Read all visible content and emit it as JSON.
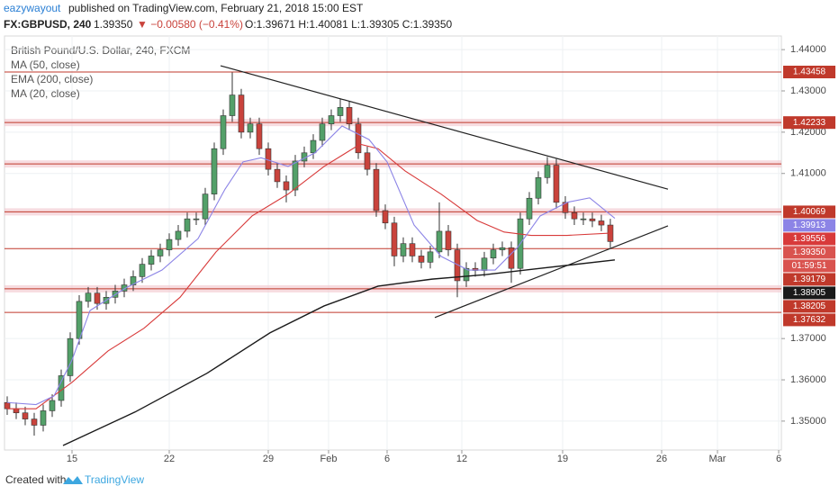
{
  "header": {
    "author": "eazywayout",
    "published": " published on TradingView.com, February 21, 2018 15:00 EST",
    "symbol": "FX:GBPUSD, 240",
    "last": "1.39350",
    "change": "▼ −0.00580 (−0.41%)",
    "ohlc": "O:1.39671 H:1.40081 L:1.39305 C:1.39350"
  },
  "footer": {
    "created": "Created with",
    "brand": "TradingView"
  },
  "chart_data": {
    "type": "candlestick",
    "title": "British Pound/U.S. Dollar, 240, FXCM",
    "up_color": "#53a069",
    "down_color": "#c9433c",
    "grid": true,
    "x": [
      0,
      1,
      2,
      3,
      4,
      5,
      6,
      7,
      8,
      9,
      10,
      11,
      12,
      13,
      14,
      15,
      16,
      17,
      18,
      19,
      20,
      21,
      22,
      23,
      24,
      25,
      26,
      27,
      28,
      29,
      30,
      31,
      32,
      33,
      34,
      35,
      36,
      37,
      38,
      39,
      40,
      41,
      42,
      43,
      44,
      45,
      46,
      47,
      48,
      49,
      50,
      51,
      52,
      53,
      54,
      55,
      56,
      57,
      58,
      59,
      60,
      61,
      62,
      63,
      64,
      65,
      66,
      67
    ],
    "open": [
      1.3545,
      1.353,
      1.352,
      1.3505,
      1.349,
      1.3525,
      1.355,
      1.361,
      1.37,
      1.379,
      1.381,
      1.3785,
      1.38,
      1.3815,
      1.383,
      1.385,
      1.388,
      1.39,
      1.3915,
      1.394,
      1.396,
      1.399,
      1.399,
      1.405,
      1.416,
      1.424,
      1.429,
      1.42,
      1.422,
      1.416,
      1.411,
      1.408,
      1.406,
      1.413,
      1.415,
      1.418,
      1.422,
      1.424,
      1.426,
      1.422,
      1.415,
      1.411,
      1.401,
      1.398,
      1.39,
      1.393,
      1.39,
      1.3885,
      1.391,
      1.396,
      1.3915,
      1.384,
      1.387,
      1.3865,
      1.3895,
      1.3915,
      1.392,
      1.387,
      1.399,
      1.404,
      1.409,
      1.412,
      1.403,
      1.4005,
      1.399,
      1.399,
      1.3985,
      1.3975
    ],
    "high": [
      1.356,
      1.3545,
      1.3535,
      1.352,
      1.354,
      1.3565,
      1.3625,
      1.3715,
      1.3805,
      1.3825,
      1.3825,
      1.3815,
      1.383,
      1.3845,
      1.3865,
      1.3895,
      1.3915,
      1.393,
      1.3955,
      1.3975,
      1.4005,
      1.4005,
      1.4065,
      1.4175,
      1.4255,
      1.4345,
      1.4305,
      1.4235,
      1.4235,
      1.4175,
      1.4125,
      1.4095,
      1.4145,
      1.4165,
      1.4195,
      1.4235,
      1.4255,
      1.428,
      1.4275,
      1.4235,
      1.4165,
      1.4125,
      1.4025,
      1.3995,
      1.3945,
      1.3945,
      1.3915,
      1.3925,
      1.403,
      1.3975,
      1.393,
      1.3885,
      1.3885,
      1.391,
      1.393,
      1.3935,
      1.3935,
      1.4005,
      1.4055,
      1.4105,
      1.414,
      1.4135,
      1.4045,
      1.402,
      1.4005,
      1.4005,
      1.4,
      1.399
    ],
    "low": [
      1.3515,
      1.3505,
      1.349,
      1.3465,
      1.3475,
      1.351,
      1.3535,
      1.3595,
      1.3685,
      1.3775,
      1.377,
      1.377,
      1.3785,
      1.38,
      1.3815,
      1.3835,
      1.3865,
      1.3885,
      1.39,
      1.3925,
      1.3945,
      1.3975,
      1.3975,
      1.4035,
      1.4145,
      1.4225,
      1.4185,
      1.4185,
      1.4145,
      1.4095,
      1.4065,
      1.403,
      1.4045,
      1.4115,
      1.4135,
      1.4165,
      1.4205,
      1.4225,
      1.4205,
      1.4135,
      1.4095,
      1.3995,
      1.3965,
      1.3875,
      1.3885,
      1.3885,
      1.387,
      1.387,
      1.3895,
      1.39,
      1.38,
      1.3825,
      1.385,
      1.385,
      1.388,
      1.39,
      1.3835,
      1.3855,
      1.3975,
      1.4025,
      1.4075,
      1.4015,
      1.399,
      1.3975,
      1.3975,
      1.397,
      1.396,
      1.392
    ],
    "close": [
      1.353,
      1.352,
      1.3505,
      1.349,
      1.3525,
      1.355,
      1.361,
      1.37,
      1.379,
      1.381,
      1.3785,
      1.38,
      1.3815,
      1.383,
      1.385,
      1.388,
      1.39,
      1.3915,
      1.394,
      1.396,
      1.399,
      1.399,
      1.405,
      1.416,
      1.424,
      1.429,
      1.42,
      1.422,
      1.416,
      1.411,
      1.408,
      1.406,
      1.413,
      1.415,
      1.418,
      1.422,
      1.424,
      1.426,
      1.422,
      1.415,
      1.411,
      1.401,
      1.398,
      1.39,
      1.393,
      1.39,
      1.3885,
      1.391,
      1.396,
      1.3915,
      1.384,
      1.387,
      1.3865,
      1.3895,
      1.3915,
      1.392,
      1.387,
      1.399,
      1.404,
      1.409,
      1.412,
      1.403,
      1.4005,
      1.399,
      1.399,
      1.3985,
      1.3975,
      1.3935
    ],
    "series": [
      {
        "name": "MA (50, close)",
        "color": "#d83a3a",
        "last": 1.39556,
        "x": [
          0,
          3.2,
          7.2,
          11.2,
          15.2,
          19.2,
          23.2,
          27.2,
          31.2,
          35.2,
          39.2,
          41.2,
          44.2,
          48.2,
          52.2,
          55.2,
          58.2,
          62.2,
          67.2
        ],
        "values": [
          1.353,
          1.353,
          1.3594,
          1.367,
          1.3725,
          1.38,
          1.391,
          1.3997,
          1.405,
          1.4117,
          1.4171,
          1.416,
          1.4106,
          1.405,
          1.3986,
          1.3958,
          1.395,
          1.395,
          1.39556
        ]
      },
      {
        "name": "EMA (200, close)",
        "color": "#1a1a1a",
        "last": 1.38905,
        "x": [
          6.2,
          14.2,
          22.2,
          29.2,
          35.2,
          41.2,
          47.2,
          53.2,
          59.2,
          67.5
        ],
        "values": [
          1.3441,
          1.3522,
          1.3616,
          1.3714,
          1.3779,
          1.3827,
          1.3844,
          1.3855,
          1.387,
          1.38905
        ]
      },
      {
        "name": "MA (20, close)",
        "color": "#8c84e6",
        "last": 1.39913,
        "x": [
          0,
          3.2,
          5.2,
          7.2,
          9.2,
          13.2,
          17.2,
          21.2,
          24.2,
          26.2,
          28.2,
          31.2,
          34.2,
          37.2,
          40.2,
          42.2,
          45.2,
          48.2,
          51.2,
          54.2,
          56.7,
          59.2,
          62.2,
          64.7,
          67.5
        ],
        "values": [
          1.3545,
          1.354,
          1.3561,
          1.3648,
          1.3768,
          1.3823,
          1.3866,
          1.3942,
          1.4062,
          1.4128,
          1.4138,
          1.4117,
          1.415,
          1.4215,
          1.4182,
          1.4128,
          1.3975,
          1.3899,
          1.3866,
          1.3866,
          1.3921,
          1.3997,
          1.403,
          1.4041,
          1.39913
        ]
      }
    ],
    "levels": [
      {
        "value": 1.43458,
        "band": false
      },
      {
        "value": 1.42233,
        "band": true
      },
      {
        "value": 1.40069,
        "band": true
      },
      {
        "value": 1.39179,
        "band": false
      },
      {
        "value": 1.38205,
        "band": true
      },
      {
        "value": 1.37632,
        "band": false
      }
    ],
    "unlabeled_levels": [
      {
        "value": 1.4123,
        "band": true
      }
    ],
    "trendlines": [
      {
        "x": [
          23.7,
          73.4
        ],
        "y": [
          1.4361,
          1.4062
        ]
      },
      {
        "x": [
          47.5,
          73.4
        ],
        "y": [
          1.3751,
          1.3973
        ]
      }
    ],
    "last_price": {
      "value": 1.3935,
      "label": "1.39350"
    },
    "countdown": "01:59:51",
    "xlim": [
      -0.3,
      86
    ],
    "ylim": [
      1.343,
      1.4433
    ],
    "xticks": [
      {
        "value": 7.2,
        "label": "15"
      },
      {
        "value": 18,
        "label": "22"
      },
      {
        "value": 29,
        "label": "29"
      },
      {
        "value": 35.7,
        "label": "Feb"
      },
      {
        "value": 42.2,
        "label": "6"
      },
      {
        "value": 50.5,
        "label": "12"
      },
      {
        "value": 61.7,
        "label": "19"
      },
      {
        "value": 72.7,
        "label": "26"
      },
      {
        "value": 78.9,
        "label": "Mar"
      },
      {
        "value": 85.7,
        "label": "6"
      }
    ],
    "yticks": [
      {
        "value": 1.44,
        "label": "1.44000"
      },
      {
        "value": 1.43,
        "label": "1.43000"
      },
      {
        "value": 1.42,
        "label": "1.42000"
      },
      {
        "value": 1.41,
        "label": "1.41000"
      },
      {
        "value": 1.37,
        "label": "1.37000"
      },
      {
        "value": 1.36,
        "label": "1.36000"
      },
      {
        "value": 1.35,
        "label": "1.35000"
      }
    ]
  }
}
